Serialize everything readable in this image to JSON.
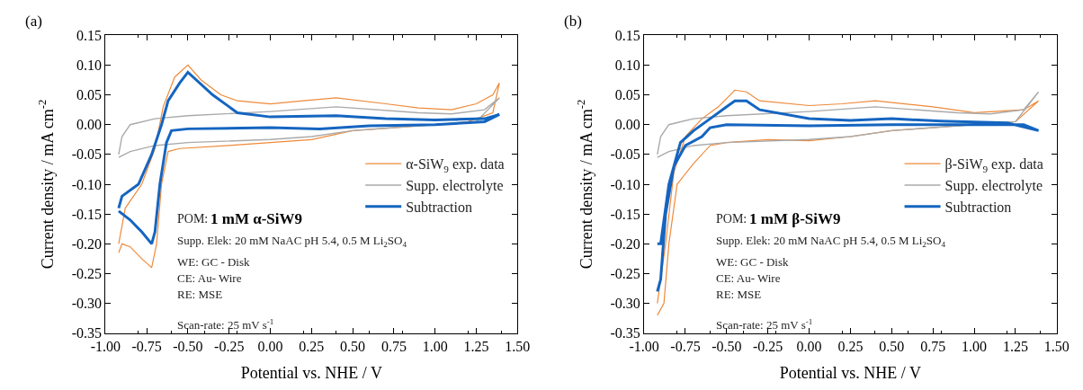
{
  "chart_data": [
    {
      "type": "line",
      "xlabel": "Potential vs. NHE / V",
      "ylabel": "Current density / mA cm$^{-2}$",
      "legend": "right",
      "line_style": "solid",
      "xlim": [
        -1.0,
        1.5
      ],
      "ylim": [
        -0.35,
        0.15
      ],
      "xticks": [
        {
          "value": -1.0,
          "label": "-1.00"
        },
        {
          "value": -0.75,
          "label": "-0.75"
        },
        {
          "value": -0.5,
          "label": "-0.50"
        },
        {
          "value": -0.25,
          "label": "-0.25"
        },
        {
          "value": 0,
          "label": "0.00"
        },
        {
          "value": 0.25,
          "label": "0.25"
        },
        {
          "value": 0.5,
          "label": "0.50"
        },
        {
          "value": 0.75,
          "label": "0.75"
        },
        {
          "value": 1.0,
          "label": "1.00"
        },
        {
          "value": 1.25,
          "label": "1.25"
        },
        {
          "value": 1.5,
          "label": "1.50"
        }
      ],
      "yticks": [
        {
          "value": 0.15,
          "label": "0.15"
        },
        {
          "value": 0.1,
          "label": "0.10"
        },
        {
          "value": 0.05,
          "label": "0.05"
        },
        {
          "value": 0,
          "label": "0.00"
        },
        {
          "value": -0.05,
          "label": "-0.05"
        },
        {
          "value": -0.1,
          "label": "-0.10"
        },
        {
          "value": -0.15,
          "label": "-0.15"
        },
        {
          "value": -0.2,
          "label": "-0.20"
        },
        {
          "value": -0.25,
          "label": "-0.25"
        },
        {
          "value": -0.3,
          "label": "-0.30"
        },
        {
          "value": -0.35,
          "label": "-0.35"
        }
      ],
      "annotations": [
        "(a)",
        "POM:",
        "1 mM α-SiW9",
        "Supp. Elek: 20 mM NaAC pH 5.4, 0.5 M Li$_{2}$SO$_{4}$",
        "WE: GC - Disk",
        "CE: Au- Wire",
        "RE: MSE",
        "Scan-rate: 25 mV s$^{-1}$"
      ],
      "series": [
        {
          "name": "α-SiW$_{9}$ exp. data",
          "color": "#ee8a3a",
          "x": [
            -0.92,
            -0.9,
            -0.85,
            -0.78,
            -0.72,
            -0.69,
            -0.66,
            -0.62,
            -0.55,
            -0.25,
            0,
            0.25,
            0.5,
            0.75,
            1.0,
            1.2,
            1.35,
            1.39,
            1.35,
            1.25,
            1.1,
            0.9,
            0.7,
            0.4,
            0.2,
            0,
            -0.2,
            -0.3,
            -0.42,
            -0.5,
            -0.58,
            -0.65,
            -0.7,
            -0.78,
            -0.88,
            -0.92
          ],
          "values": [
            -0.215,
            -0.2,
            -0.205,
            -0.225,
            -0.24,
            -0.2,
            -0.1,
            -0.045,
            -0.04,
            -0.035,
            -0.03,
            -0.025,
            -0.01,
            -0.005,
            0,
            0.005,
            0.02,
            0.07,
            0.05,
            0.035,
            0.025,
            0.028,
            0.035,
            0.045,
            0.04,
            0.035,
            0.04,
            0.05,
            0.075,
            0.1,
            0.08,
            0.03,
            -0.04,
            -0.1,
            -0.14,
            -0.2
          ]
        },
        {
          "name": "Supp. electrolyte",
          "color": "#aaaaaa",
          "x": [
            -0.92,
            -0.85,
            -0.7,
            -0.5,
            0,
            0.25,
            0.5,
            0.75,
            1.0,
            1.25,
            1.39,
            1.3,
            1.1,
            0.9,
            0.4,
            0,
            -0.5,
            -0.7,
            -0.85,
            -0.9,
            -0.92
          ],
          "values": [
            -0.055,
            -0.045,
            -0.035,
            -0.03,
            -0.025,
            -0.02,
            -0.01,
            -0.005,
            0,
            0.005,
            0.045,
            0.025,
            0.018,
            0.02,
            0.03,
            0.022,
            0.015,
            0.01,
            0,
            -0.02,
            -0.05
          ]
        },
        {
          "name": "Subtraction",
          "color": "#1565c0",
          "x": [
            -0.92,
            -0.85,
            -0.78,
            -0.72,
            -0.7,
            -0.67,
            -0.63,
            -0.6,
            -0.5,
            0,
            0.3,
            0.6,
            1.0,
            1.3,
            1.39,
            1.3,
            1.0,
            0.7,
            0.4,
            0,
            -0.2,
            -0.35,
            -0.5,
            -0.55,
            -0.62,
            -0.66,
            -0.72,
            -0.8,
            -0.9,
            -0.92
          ],
          "values": [
            -0.145,
            -0.16,
            -0.18,
            -0.2,
            -0.18,
            -0.1,
            -0.03,
            -0.01,
            -0.007,
            -0.005,
            -0.007,
            -0.002,
            0,
            0.005,
            0.017,
            0.01,
            0.008,
            0.01,
            0.015,
            0.013,
            0.02,
            0.05,
            0.088,
            0.07,
            0.04,
            0,
            -0.05,
            -0.1,
            -0.12,
            -0.14
          ]
        }
      ]
    },
    {
      "type": "line",
      "xlabel": "Potential vs. NHE / V",
      "ylabel": "Current density / mA cm$^{-2}$",
      "legend": "right",
      "line_style": "solid",
      "xlim": [
        -1.0,
        1.5
      ],
      "ylim": [
        -0.35,
        0.15
      ],
      "xticks": [
        {
          "value": -1.0,
          "label": "-1.00"
        },
        {
          "value": -0.75,
          "label": "-0.75"
        },
        {
          "value": -0.5,
          "label": "-0.50"
        },
        {
          "value": -0.25,
          "label": "-0.25"
        },
        {
          "value": 0,
          "label": "0.00"
        },
        {
          "value": 0.25,
          "label": "0.25"
        },
        {
          "value": 0.5,
          "label": "0.50"
        },
        {
          "value": 0.75,
          "label": "0.75"
        },
        {
          "value": 1.0,
          "label": "1.00"
        },
        {
          "value": 1.25,
          "label": "1.25"
        },
        {
          "value": 1.5,
          "label": "1.50"
        }
      ],
      "yticks": [
        {
          "value": 0.15,
          "label": "0.15"
        },
        {
          "value": 0.1,
          "label": "0.10"
        },
        {
          "value": 0.05,
          "label": "0.05"
        },
        {
          "value": 0,
          "label": "0.00"
        },
        {
          "value": -0.05,
          "label": "-0.05"
        },
        {
          "value": -0.1,
          "label": "-0.10"
        },
        {
          "value": -0.15,
          "label": "-0.15"
        },
        {
          "value": -0.2,
          "label": "-0.20"
        },
        {
          "value": -0.25,
          "label": "-0.25"
        },
        {
          "value": -0.3,
          "label": "-0.30"
        },
        {
          "value": -0.35,
          "label": "-0.35"
        }
      ],
      "annotations": [
        "(b)",
        "POM:",
        "1 mM β-SiW9",
        "Supp. Elek: 20 mM NaAC pH 5.4, 0.5 M Li$_{2}$SO$_{4}$",
        "WE: GC - Disk",
        "CE: Au- Wire",
        "RE: MSE",
        "Scan-rate: 25 mV s$^{-1}$"
      ],
      "series": [
        {
          "name": "β-SiW$_{9}$ exp. data",
          "color": "#ee8a3a",
          "x": [
            -0.92,
            -0.88,
            -0.85,
            -0.8,
            -0.7,
            -0.6,
            -0.5,
            -0.25,
            0,
            0.25,
            0.5,
            1.0,
            1.25,
            1.39,
            1.3,
            1.0,
            0.75,
            0.4,
            0.2,
            0,
            -0.3,
            -0.38,
            -0.45,
            -0.55,
            -0.65,
            -0.75,
            -0.82,
            -0.87,
            -0.92
          ],
          "values": [
            -0.32,
            -0.3,
            -0.2,
            -0.1,
            -0.065,
            -0.035,
            -0.03,
            -0.025,
            -0.027,
            -0.02,
            -0.01,
            0,
            0.005,
            0.04,
            0.025,
            0.02,
            0.03,
            0.04,
            0.035,
            0.032,
            0.04,
            0.055,
            0.058,
            0.03,
            0.01,
            -0.02,
            -0.08,
            -0.2,
            -0.3
          ]
        },
        {
          "name": "Supp. electrolyte",
          "color": "#aaaaaa",
          "x": [
            -0.92,
            -0.85,
            -0.7,
            -0.5,
            0,
            0.25,
            0.5,
            0.75,
            1.0,
            1.25,
            1.39,
            1.3,
            1.1,
            0.9,
            0.4,
            0,
            -0.5,
            -0.7,
            -0.85,
            -0.9,
            -0.92
          ],
          "values": [
            -0.055,
            -0.045,
            -0.035,
            -0.03,
            -0.025,
            -0.02,
            -0.01,
            -0.005,
            0,
            0.005,
            0.055,
            0.025,
            0.018,
            0.02,
            0.03,
            0.022,
            0.015,
            0.01,
            0,
            -0.02,
            -0.05
          ]
        },
        {
          "name": "Subtraction",
          "color": "#1565c0",
          "x": [
            -0.92,
            -0.9,
            -0.87,
            -0.82,
            -0.75,
            -0.65,
            -0.6,
            -0.5,
            0,
            0.5,
            1.0,
            1.3,
            1.39,
            1.2,
            0.8,
            0.5,
            0.25,
            0,
            -0.3,
            -0.38,
            -0.45,
            -0.5,
            -0.6,
            -0.7,
            -0.78,
            -0.85,
            -0.9,
            -0.92
          ],
          "values": [
            -0.28,
            -0.26,
            -0.15,
            -0.07,
            -0.035,
            -0.02,
            -0.005,
            0,
            -0.002,
            0,
            0,
            0,
            -0.01,
            0.003,
            0.006,
            0.01,
            0.007,
            0.01,
            0.025,
            0.04,
            0.04,
            0.03,
            0.01,
            -0.01,
            -0.03,
            -0.1,
            -0.2,
            -0.2
          ]
        }
      ]
    }
  ]
}
